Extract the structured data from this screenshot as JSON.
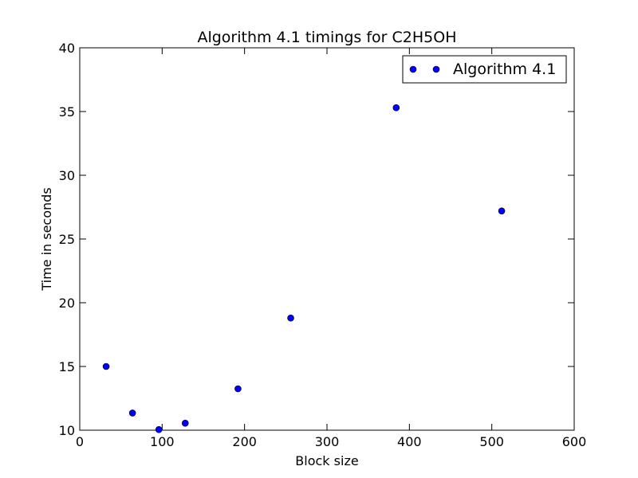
{
  "chart_data": {
    "type": "scatter",
    "title": "Algorithm 4.1 timings for C2H5OH",
    "xlabel": "Block size",
    "ylabel": "Time in seconds",
    "xlim": [
      0,
      600
    ],
    "ylim": [
      10,
      40
    ],
    "xticks": [
      0,
      100,
      200,
      300,
      400,
      500,
      600
    ],
    "yticks": [
      10,
      15,
      20,
      25,
      30,
      35,
      40
    ],
    "xtick_labels": [
      "0",
      "100",
      "200",
      "300",
      "400",
      "500",
      "600"
    ],
    "ytick_labels": [
      "10",
      "15",
      "20",
      "25",
      "30",
      "35",
      "40"
    ],
    "grid": false,
    "legend_position": "top-right",
    "series": [
      {
        "name": "Algorithm 4.1",
        "color": "#0000ff",
        "marker": "circle",
        "x": [
          32,
          64,
          96,
          128,
          192,
          256,
          384,
          512
        ],
        "y": [
          15.0,
          11.35,
          10.05,
          10.55,
          13.25,
          18.8,
          35.3,
          27.2
        ]
      }
    ]
  }
}
